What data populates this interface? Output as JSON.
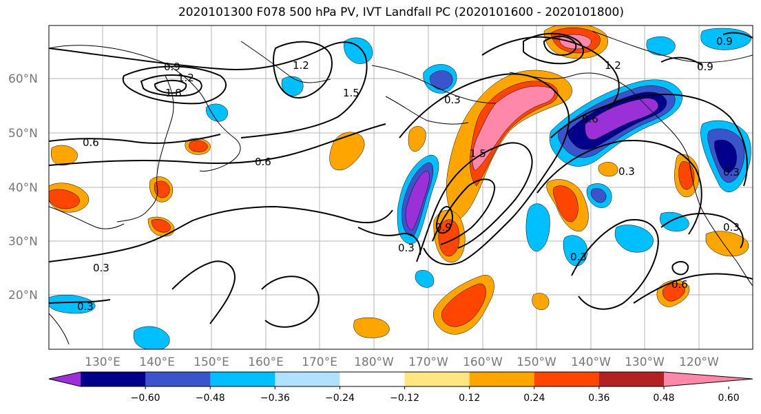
{
  "title": "2020101300 F078 500 hPa PV, IVT Landfall PC (2020101600 - 2020101800)",
  "map": {
    "lat_labels": [
      "60°N",
      "50°N",
      "40°N",
      "30°N",
      "20°N"
    ],
    "lon_labels": [
      "130°E",
      "140°E",
      "150°E",
      "160°E",
      "170°E",
      "180°W",
      "170°W",
      "160°W",
      "150°W",
      "140°W",
      "130°W",
      "120°W"
    ],
    "contour_labels": [
      "0.9",
      "1.2",
      "1.8",
      "1.2",
      "1.5",
      "0.6",
      "0.6",
      "0.3",
      "0.3",
      "0.9",
      "1.5",
      "0.3",
      "0.6",
      "0.3",
      "0.3",
      "0.6",
      "0.3",
      "0.9",
      "1.2",
      "0.9",
      "0.3",
      "0.3"
    ]
  },
  "colorbar": {
    "colors": [
      "#9b30d8",
      "#00008b",
      "#3a55cc",
      "#00bfff",
      "#b0e2ff",
      "#ffffff",
      "#ffe680",
      "#ffa500",
      "#ff4500",
      "#b22222",
      "#ff88aa"
    ],
    "tick_labels": [
      "−0.60",
      "−0.48",
      "−0.36",
      "−0.24",
      "−0.12",
      "0.12",
      "0.24",
      "0.36",
      "0.48",
      "0.60"
    ]
  }
}
